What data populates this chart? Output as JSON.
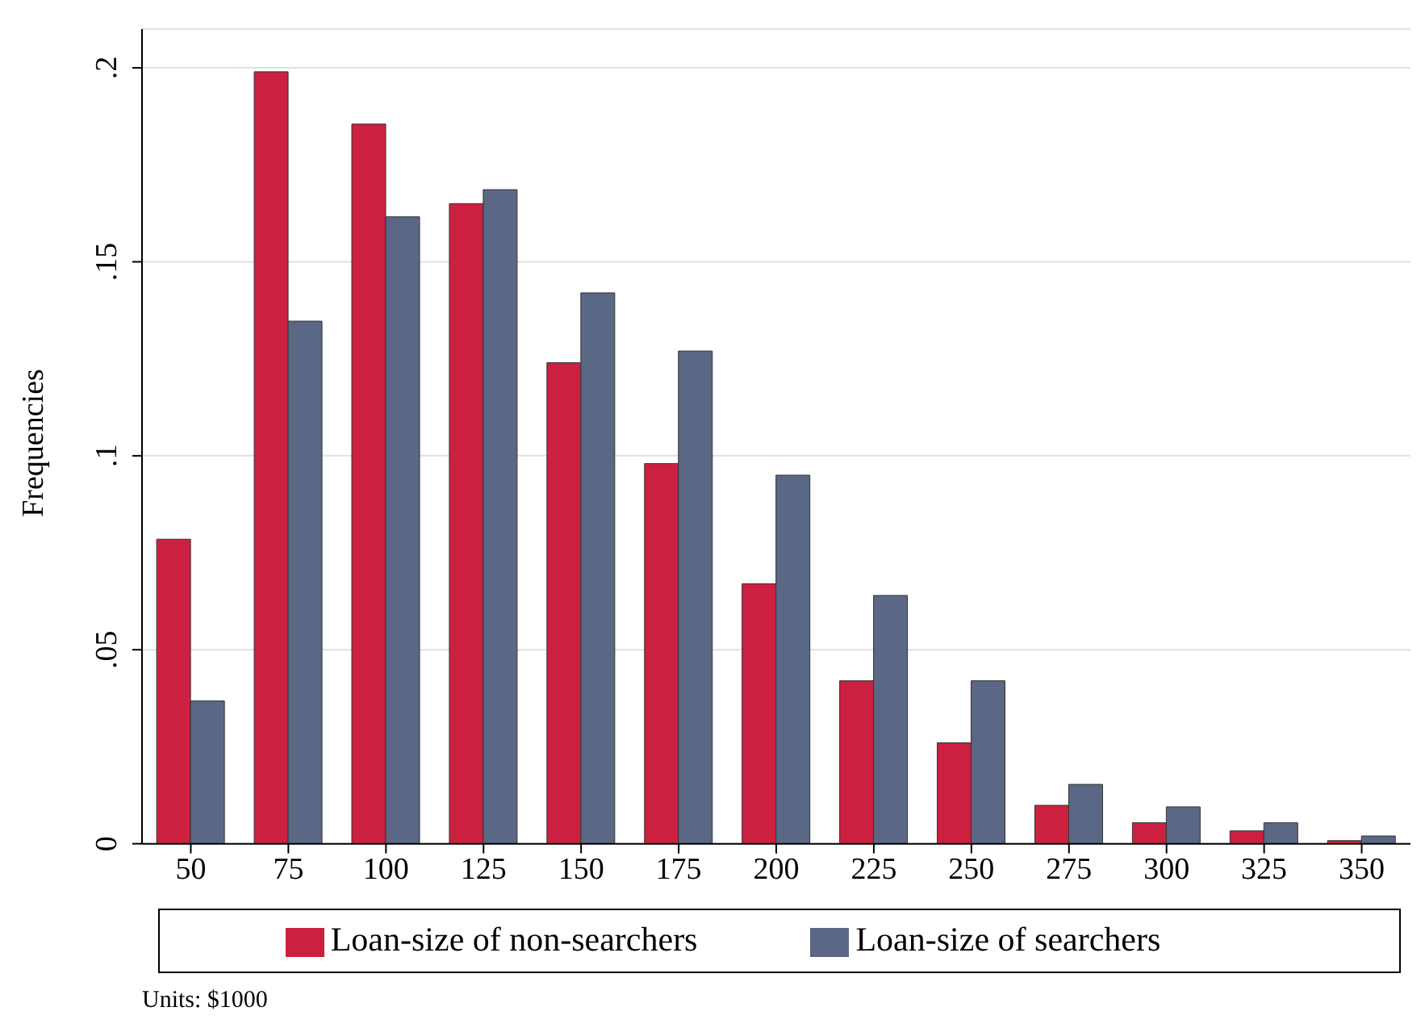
{
  "chart_data": {
    "type": "bar",
    "ylabel": "Frequencies",
    "categories": [
      "50",
      "75",
      "100",
      "125",
      "150",
      "175",
      "200",
      "225",
      "250",
      "275",
      "300",
      "325",
      "350"
    ],
    "series": [
      {
        "name": "Loan-size of non-searchers",
        "color": "#cc2040",
        "values": [
          0.0785,
          0.199,
          0.1855,
          0.165,
          0.124,
          0.098,
          0.067,
          0.042,
          0.026,
          0.0099,
          0.0054,
          0.0033,
          0.0008
        ]
      },
      {
        "name": "Loan-size of searchers",
        "color": "#5a6785",
        "values": [
          0.0368,
          0.1347,
          0.1616,
          0.1686,
          0.142,
          0.127,
          0.095,
          0.064,
          0.042,
          0.0153,
          0.0095,
          0.0054,
          0.002
        ]
      }
    ],
    "ylim": [
      0,
      0.21
    ],
    "yticks": [
      0,
      {
        "value": 0.05,
        "label": ".05"
      },
      {
        "value": 0.1,
        "label": ".1"
      },
      {
        "value": 0.15,
        "label": ".15"
      },
      {
        "value": 0.2,
        "label": ".2"
      }
    ],
    "grid": "y",
    "legend": "bottom",
    "annotations": [
      "Units: $1000"
    ]
  }
}
